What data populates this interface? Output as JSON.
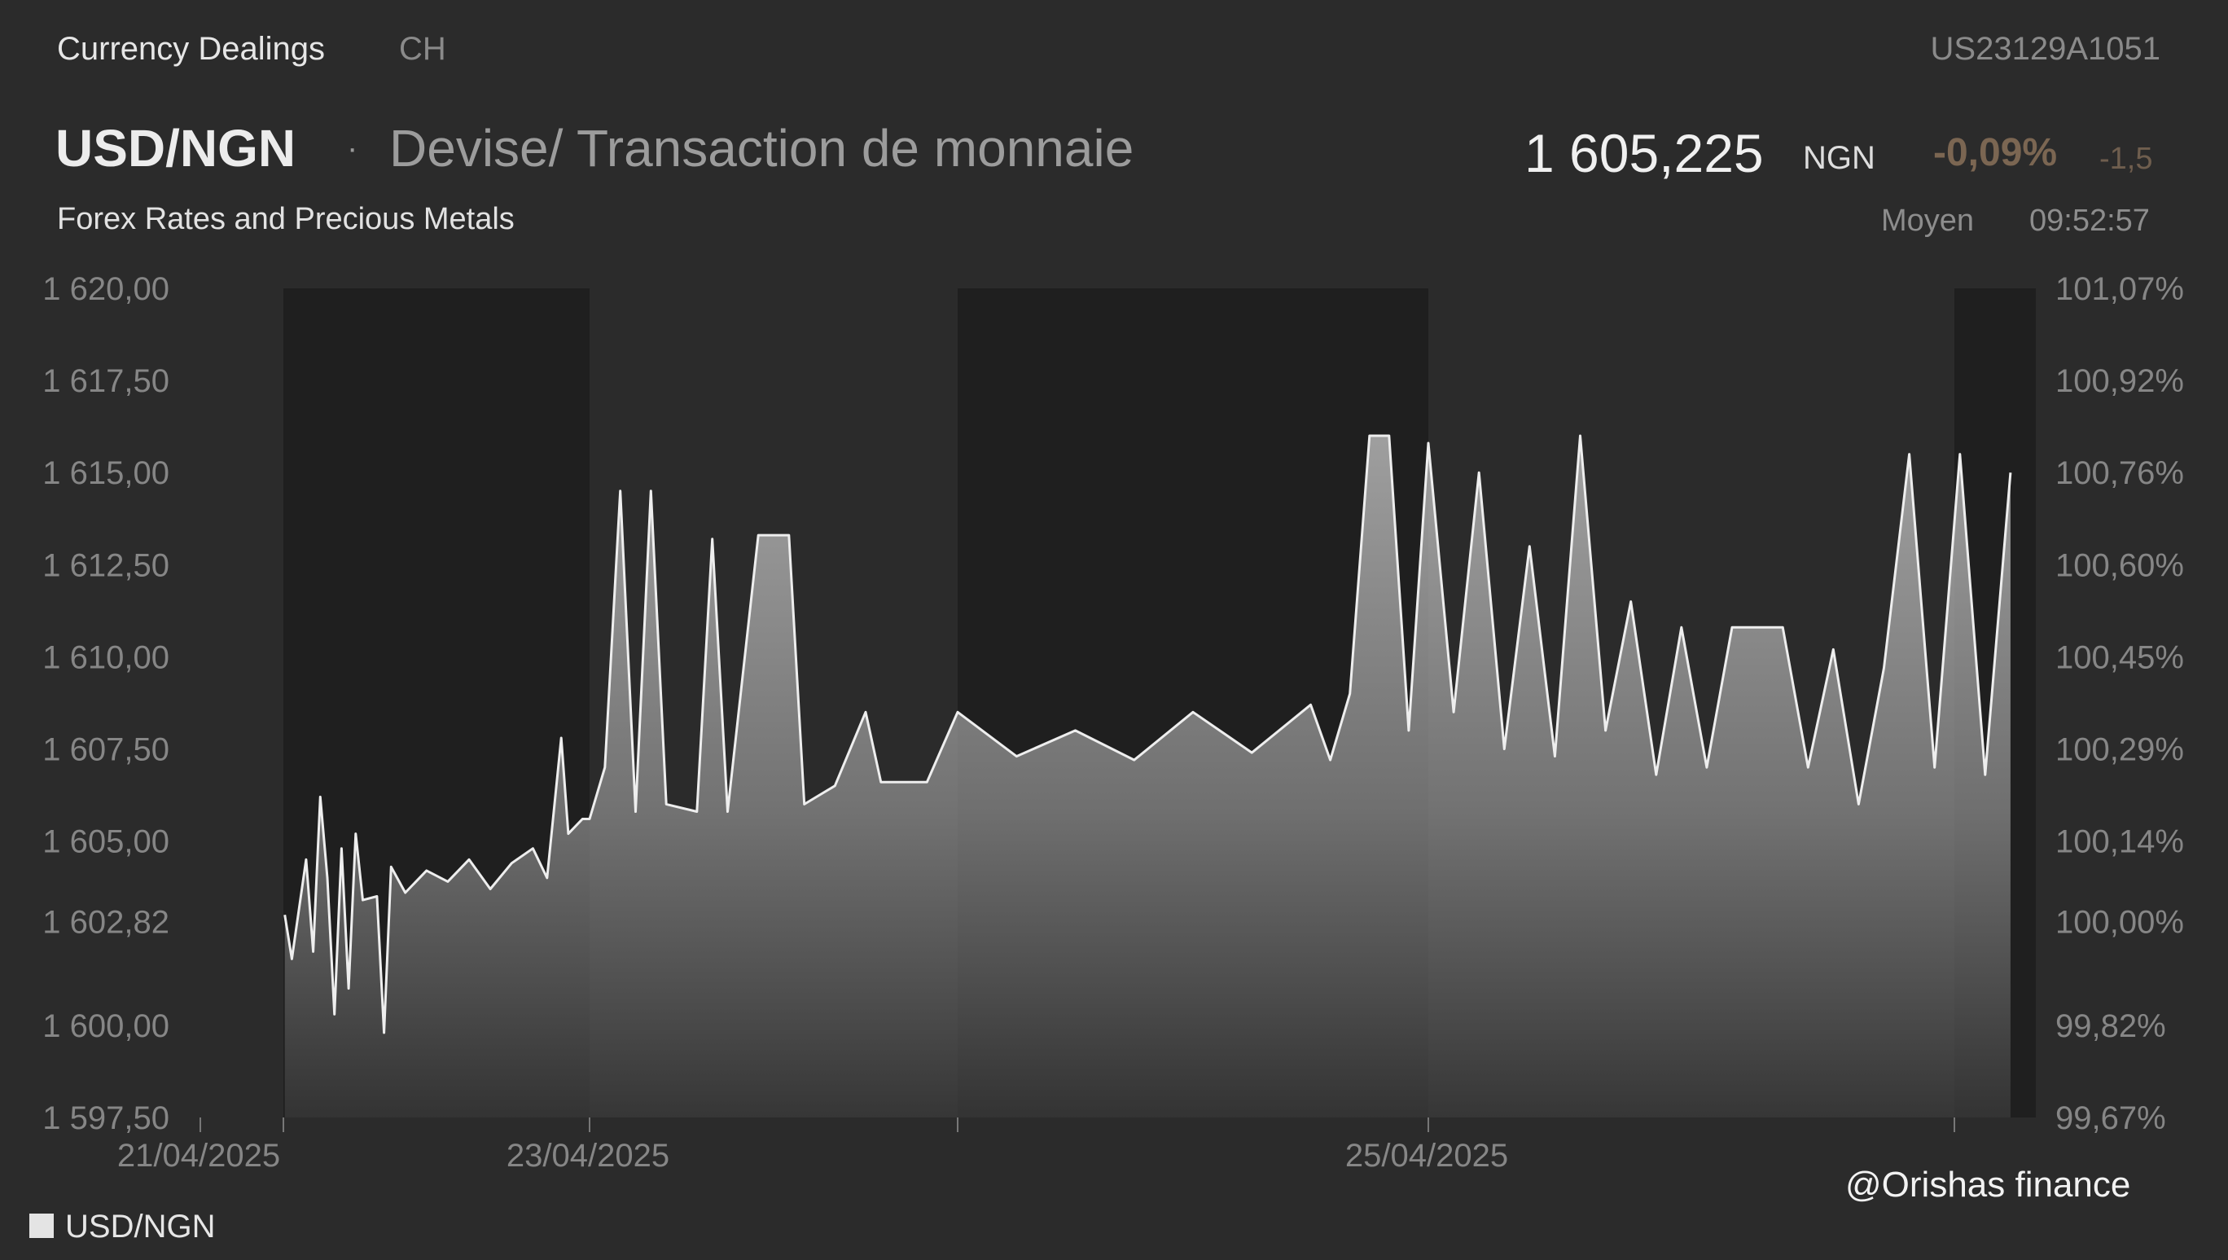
{
  "header": {
    "section": "Currency Dealings",
    "country": "CH",
    "isin": "US23129A1051",
    "pair": "USD/NGN",
    "separator": "·",
    "description": "Devise/ Transaction de monnaie",
    "category": "Forex Rates and Precious Metals",
    "price": "1 605,225",
    "currency": "NGN",
    "change_pct": "-0,09%",
    "change_abs": "-1,5",
    "price_type": "Moyen",
    "time": "09:52:57"
  },
  "watermark": "@Orishas finance",
  "colors": {
    "background": "#2b2b2b",
    "night_band": "#1f1f1f",
    "line": "#eeeeee",
    "negative_change": "#7b6652"
  },
  "chart_data": {
    "type": "area",
    "title": "USD/NGN",
    "legend": {
      "position": "bottom-left",
      "entries": [
        "USD/NGN"
      ]
    },
    "grid": false,
    "ylim": [
      1597.5,
      1620.0
    ],
    "y_ticks_left": [
      "1 620,00",
      "1 617,50",
      "1 615,00",
      "1 612,50",
      "1 610,00",
      "1 607,50",
      "1 605,00",
      "1 602,82",
      "1 600,00",
      "1 597,50"
    ],
    "y_ticks_right": [
      "101,07%",
      "100,92%",
      "100,76%",
      "100,60%",
      "100,45%",
      "100,29%",
      "100,14%",
      "100,00%",
      "99,82%",
      "99,67%"
    ],
    "x_tick_labels": [
      "21/04/2025",
      "23/04/2025",
      "25/04/2025"
    ],
    "x_range": [
      "2025-04-21",
      "2025-04-25"
    ],
    "reference_value": 1602.82,
    "series": [
      {
        "name": "USD/NGN",
        "points": [
          [
            "2025-04-21 05:00",
            1603.0
          ],
          [
            "2025-04-21 06:00",
            1601.8
          ],
          [
            "2025-04-21 08:00",
            1604.5
          ],
          [
            "2025-04-21 09:00",
            1602.0
          ],
          [
            "2025-04-21 10:00",
            1606.2
          ],
          [
            "2025-04-21 11:00",
            1604.0
          ],
          [
            "2025-04-21 12:00",
            1600.3
          ],
          [
            "2025-04-21 13:00",
            1604.8
          ],
          [
            "2025-04-21 14:00",
            1601.0
          ],
          [
            "2025-04-21 15:00",
            1605.2
          ],
          [
            "2025-04-21 16:00",
            1603.4
          ],
          [
            "2025-04-21 18:00",
            1603.5
          ],
          [
            "2025-04-21 19:00",
            1599.8
          ],
          [
            "2025-04-21 20:00",
            1604.3
          ],
          [
            "2025-04-21 22:00",
            1603.6
          ],
          [
            "2025-04-22 01:00",
            1604.2
          ],
          [
            "2025-04-22 04:00",
            1603.9
          ],
          [
            "2025-04-22 07:00",
            1604.5
          ],
          [
            "2025-04-22 10:00",
            1603.7
          ],
          [
            "2025-04-22 13:00",
            1604.4
          ],
          [
            "2025-04-22 16:00",
            1604.8
          ],
          [
            "2025-04-22 18:00",
            1604.0
          ],
          [
            "2025-04-22 20:00",
            1607.8
          ],
          [
            "2025-04-22 21:00",
            1605.2
          ],
          [
            "2025-04-22 23:00",
            1605.6
          ],
          [
            "2025-04-23 00:00",
            1605.6
          ],
          [
            "2025-04-23 01:00",
            1607.0
          ],
          [
            "2025-04-23 02:00",
            1614.5
          ],
          [
            "2025-04-23 03:00",
            1605.8
          ],
          [
            "2025-04-23 04:00",
            1614.5
          ],
          [
            "2025-04-23 05:00",
            1606.0
          ],
          [
            "2025-04-23 07:00",
            1605.8
          ],
          [
            "2025-04-23 08:00",
            1613.2
          ],
          [
            "2025-04-23 09:00",
            1605.8
          ],
          [
            "2025-04-23 11:00",
            1613.3
          ],
          [
            "2025-04-23 13:00",
            1613.3
          ],
          [
            "2025-04-23 14:00",
            1606.0
          ],
          [
            "2025-04-23 16:00",
            1606.5
          ],
          [
            "2025-04-23 18:00",
            1608.5
          ],
          [
            "2025-04-23 19:00",
            1606.6
          ],
          [
            "2025-04-23 22:00",
            1606.6
          ],
          [
            "2025-04-24 00:00",
            1608.5
          ],
          [
            "2025-04-24 03:00",
            1607.3
          ],
          [
            "2025-04-24 06:00",
            1608.0
          ],
          [
            "2025-04-24 09:00",
            1607.2
          ],
          [
            "2025-04-24 12:00",
            1608.5
          ],
          [
            "2025-04-24 15:00",
            1607.4
          ],
          [
            "2025-04-24 18:00",
            1608.7
          ],
          [
            "2025-04-24 19:00",
            1607.2
          ],
          [
            "2025-04-24 20:00",
            1609.0
          ],
          [
            "2025-04-24 21:00",
            1616.0
          ],
          [
            "2025-04-24 22:00",
            1616.0
          ],
          [
            "2025-04-24 23:00",
            1608.0
          ],
          [
            "2025-04-25 00:00",
            1615.8
          ],
          [
            "2025-04-25 01:00",
            1608.5
          ],
          [
            "2025-04-25 02:00",
            1615.0
          ],
          [
            "2025-04-25 03:00",
            1607.5
          ],
          [
            "2025-04-25 04:00",
            1613.0
          ],
          [
            "2025-04-25 05:00",
            1607.3
          ],
          [
            "2025-04-25 06:00",
            1616.0
          ],
          [
            "2025-04-25 07:00",
            1608.0
          ],
          [
            "2025-04-25 08:00",
            1611.5
          ],
          [
            "2025-04-25 09:00",
            1606.8
          ],
          [
            "2025-04-25 10:00",
            1610.8
          ],
          [
            "2025-04-25 11:00",
            1607.0
          ],
          [
            "2025-04-25 12:00",
            1610.8
          ],
          [
            "2025-04-25 14:00",
            1610.8
          ],
          [
            "2025-04-25 15:00",
            1607.0
          ],
          [
            "2025-04-25 16:00",
            1610.2
          ],
          [
            "2025-04-25 17:00",
            1606.0
          ],
          [
            "2025-04-25 18:00",
            1609.7
          ],
          [
            "2025-04-25 19:00",
            1615.5
          ],
          [
            "2025-04-25 20:00",
            1607.0
          ],
          [
            "2025-04-25 21:00",
            1615.5
          ],
          [
            "2025-04-25 22:00",
            1606.8
          ],
          [
            "2025-04-25 23:00",
            1615.0
          ]
        ]
      }
    ]
  },
  "legend": {
    "label": "USD/NGN"
  }
}
